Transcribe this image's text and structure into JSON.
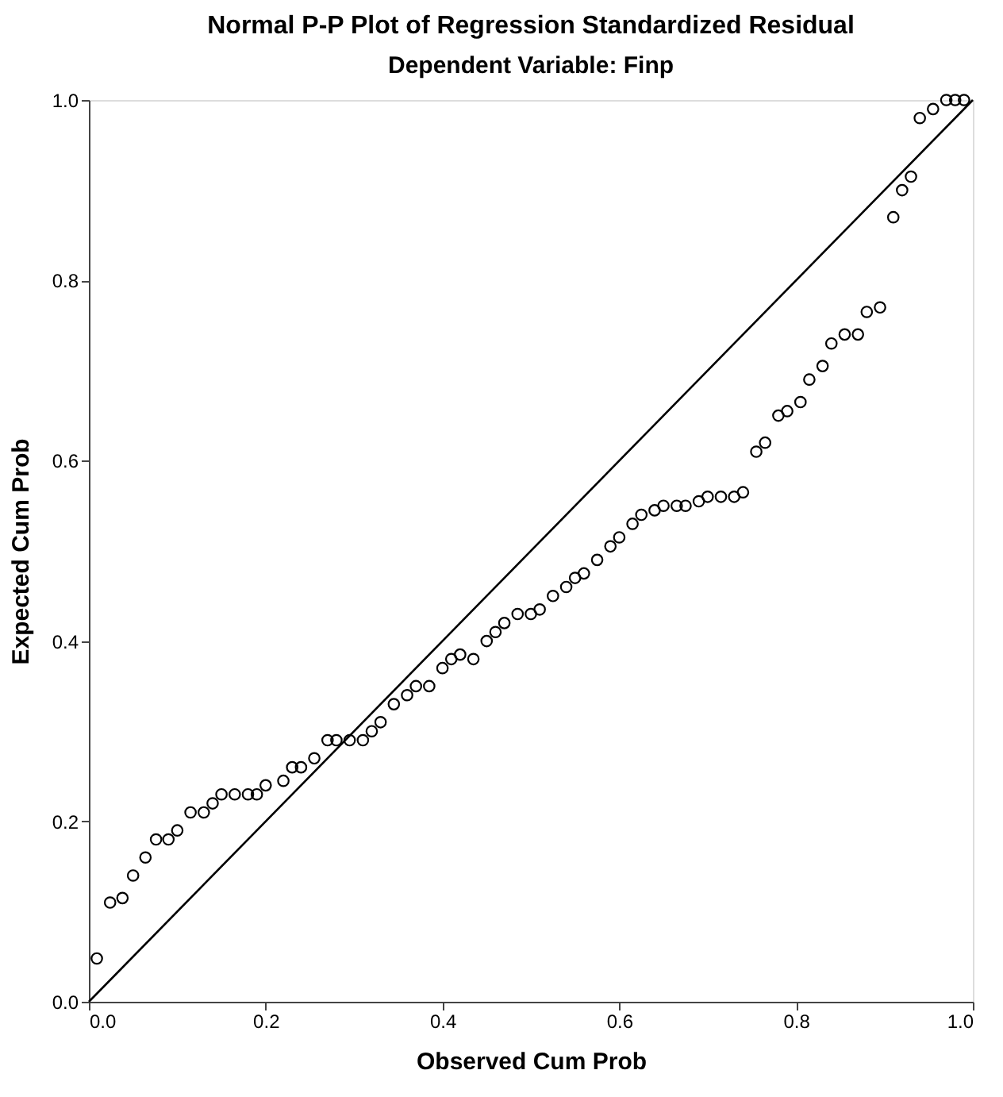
{
  "chart_data": {
    "type": "scatter",
    "title": "Normal P-P Plot of Regression Standardized Residual",
    "subtitle": "Dependent Variable: Finp",
    "xlabel": "Observed Cum Prob",
    "ylabel": "Expected Cum Prob",
    "xlim": [
      0,
      1
    ],
    "ylim": [
      0,
      1
    ],
    "xticks": [
      {
        "value": 0,
        "label": "0.0"
      },
      {
        "value": 0.2,
        "label": "0.2"
      },
      {
        "value": 0.4,
        "label": "0.4"
      },
      {
        "value": 0.6,
        "label": "0.6"
      },
      {
        "value": 0.8,
        "label": "0.8"
      },
      {
        "value": 1,
        "label": "1.0"
      }
    ],
    "yticks": [
      {
        "value": 0,
        "label": "0.0"
      },
      {
        "value": 0.2,
        "label": "0.2"
      },
      {
        "value": 0.4,
        "label": "0.4"
      },
      {
        "value": 0.6,
        "label": "0.6"
      },
      {
        "value": 0.8,
        "label": "0.8"
      },
      {
        "value": 1,
        "label": "1.0"
      }
    ],
    "grid": false,
    "series": [
      {
        "color": "#000000",
        "marker": "circle",
        "x": [
          0.009,
          0.024,
          0.038,
          0.05,
          0.064,
          0.076,
          0.09,
          0.1,
          0.115,
          0.13,
          0.14,
          0.15,
          0.165,
          0.18,
          0.19,
          0.2,
          0.22,
          0.23,
          0.24,
          0.255,
          0.27,
          0.28,
          0.295,
          0.31,
          0.32,
          0.33,
          0.345,
          0.36,
          0.37,
          0.385,
          0.4,
          0.41,
          0.42,
          0.435,
          0.45,
          0.46,
          0.47,
          0.485,
          0.5,
          0.51,
          0.525,
          0.54,
          0.55,
          0.56,
          0.575,
          0.59,
          0.6,
          0.615,
          0.625,
          0.64,
          0.65,
          0.665,
          0.675,
          0.69,
          0.7,
          0.715,
          0.73,
          0.74,
          0.755,
          0.765,
          0.78,
          0.79,
          0.805,
          0.815,
          0.83,
          0.84,
          0.855,
          0.87,
          0.88,
          0.895,
          0.91,
          0.92,
          0.93,
          0.94,
          0.955,
          0.97,
          0.98,
          0.99
        ],
        "values": [
          0.048,
          0.11,
          0.115,
          0.14,
          0.16,
          0.18,
          0.18,
          0.19,
          0.21,
          0.21,
          0.22,
          0.23,
          0.23,
          0.23,
          0.23,
          0.24,
          0.245,
          0.26,
          0.26,
          0.27,
          0.29,
          0.29,
          0.29,
          0.29,
          0.3,
          0.31,
          0.33,
          0.34,
          0.35,
          0.35,
          0.37,
          0.38,
          0.385,
          0.38,
          0.4,
          0.41,
          0.42,
          0.43,
          0.43,
          0.435,
          0.45,
          0.46,
          0.47,
          0.475,
          0.49,
          0.505,
          0.515,
          0.53,
          0.54,
          0.545,
          0.55,
          0.55,
          0.55,
          0.555,
          0.56,
          0.56,
          0.56,
          0.565,
          0.61,
          0.62,
          0.65,
          0.655,
          0.665,
          0.69,
          0.705,
          0.73,
          0.74,
          0.74,
          0.765,
          0.77,
          0.87,
          0.9,
          0.915,
          0.98,
          0.99,
          1.0,
          1.0,
          1.0
        ]
      },
      {
        "type": "line",
        "color": "#000000",
        "x": [
          0,
          1
        ],
        "values": [
          0,
          1
        ],
        "marker": "none",
        "line_style": "solid"
      }
    ]
  }
}
